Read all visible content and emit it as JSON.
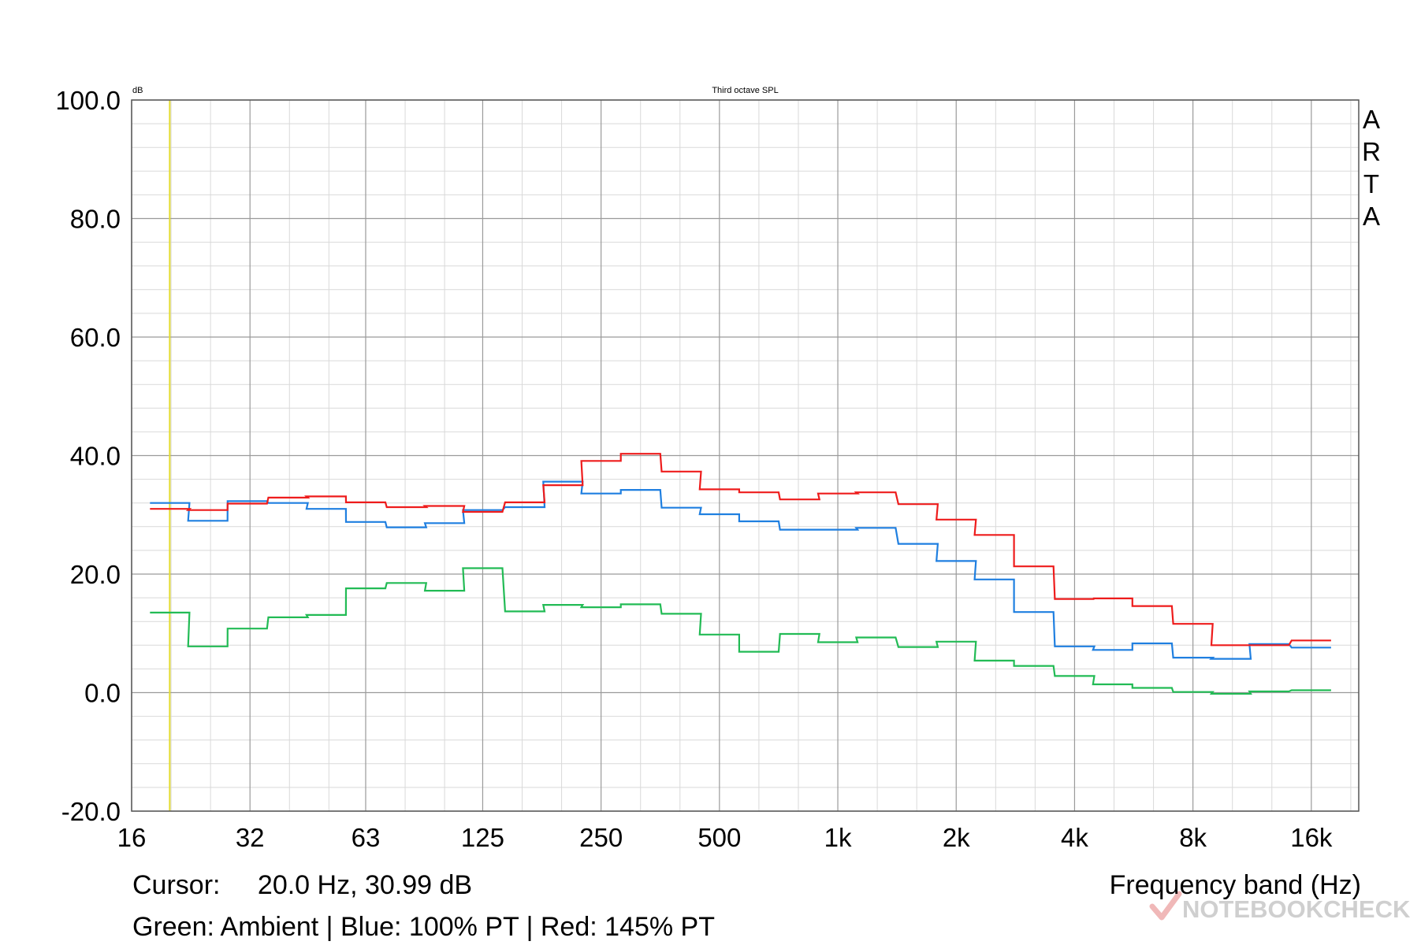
{
  "chart_data": {
    "type": "line",
    "title": "Third octave SPL",
    "ylabel": "dB",
    "xlabel": "Frequency band (Hz)",
    "ylim": [
      -20,
      100
    ],
    "x_scale": "log",
    "y_ticks": [
      "100.0",
      "80.0",
      "60.0",
      "40.0",
      "20.0",
      "0.0",
      "-20.0"
    ],
    "x_ticks": [
      {
        "label": "16",
        "value": 16
      },
      {
        "label": "32",
        "value": 32
      },
      {
        "label": "63",
        "value": 63
      },
      {
        "label": "125",
        "value": 125
      },
      {
        "label": "250",
        "value": 250
      },
      {
        "label": "500",
        "value": 500
      },
      {
        "label": "1k",
        "value": 1000
      },
      {
        "label": "2k",
        "value": 2000
      },
      {
        "label": "4k",
        "value": 4000
      },
      {
        "label": "8k",
        "value": 8000
      },
      {
        "label": "16k",
        "value": 16000
      }
    ],
    "bands": [
      20,
      25,
      31.5,
      40,
      50,
      63,
      80,
      100,
      125,
      160,
      200,
      250,
      315,
      400,
      500,
      630,
      800,
      1000,
      1250,
      1600,
      2000,
      2500,
      3150,
      4000,
      5000,
      6300,
      8000,
      10000,
      12500,
      16000
    ],
    "series": [
      {
        "name": "Ambient",
        "color": "#22bb55",
        "values": [
          13.5,
          7.8,
          10.8,
          12.7,
          13.1,
          17.6,
          18.5,
          17.2,
          21.0,
          13.7,
          14.8,
          14.4,
          14.9,
          13.3,
          9.8,
          6.9,
          9.9,
          8.5,
          9.3,
          7.7,
          8.6,
          5.4,
          4.5,
          2.8,
          1.4,
          0.8,
          0.1,
          -0.2,
          0.2,
          0.4
        ]
      },
      {
        "name": "100% PT",
        "color": "#1f7fe0",
        "values": [
          32.0,
          29.0,
          32.3,
          32.0,
          31.0,
          28.8,
          27.9,
          28.6,
          30.8,
          31.3,
          35.6,
          33.6,
          34.2,
          31.2,
          30.1,
          28.9,
          27.5,
          27.5,
          27.8,
          25.1,
          22.2,
          19.1,
          13.6,
          7.8,
          7.2,
          8.3,
          5.9,
          5.7,
          8.2,
          7.6
        ]
      },
      {
        "name": "145% PT",
        "color": "#ee1c1c",
        "values": [
          31.0,
          30.8,
          31.9,
          32.9,
          33.1,
          32.1,
          31.3,
          31.5,
          30.5,
          32.1,
          35.0,
          39.1,
          40.3,
          37.3,
          34.3,
          33.8,
          32.6,
          33.6,
          33.8,
          31.8,
          29.2,
          26.6,
          21.3,
          15.8,
          15.9,
          14.6,
          11.6,
          8.0,
          8.0,
          8.8
        ]
      }
    ],
    "cursor": {
      "x": 20,
      "color": "#e4dc30"
    },
    "grid": true,
    "legend_position": "below-left"
  },
  "brand_letters": [
    "A",
    "R",
    "T",
    "A"
  ],
  "cursor_label": "Cursor:",
  "cursor_value": "20.0 Hz, 30.99 dB",
  "legend_text": "Green: Ambient | Blue: 100% PT | Red: 145% PT",
  "watermark": "NOTEBOOKCHECK"
}
